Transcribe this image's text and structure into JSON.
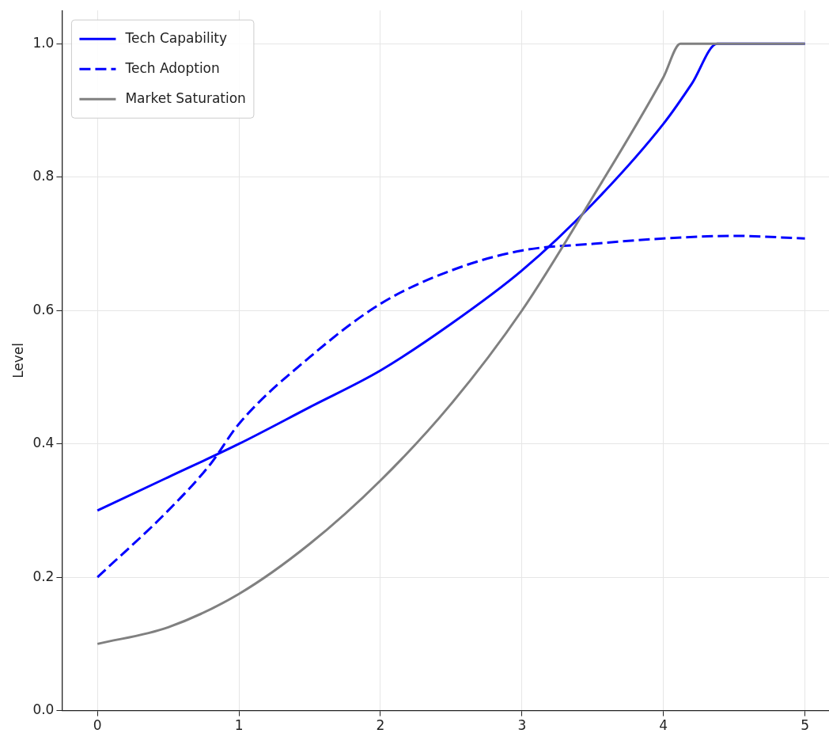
{
  "chart_data": {
    "type": "line",
    "ylabel": "Level",
    "xlim": [
      -0.25,
      5.17
    ],
    "xticks": [
      0,
      1,
      2,
      3,
      4,
      5
    ],
    "ylim": [
      0,
      1.05
    ],
    "yticks": [
      {
        "value": 0,
        "label": "0.0"
      },
      {
        "value": 0.2,
        "label": "0.2"
      },
      {
        "value": 0.4,
        "label": "0.4"
      },
      {
        "value": 0.6,
        "label": "0.6"
      },
      {
        "value": 0.8,
        "label": "0.8"
      },
      {
        "value": 1.0,
        "label": "1.0"
      }
    ],
    "grid": true,
    "legend": "top left",
    "marker": "none",
    "series": [
      {
        "name": "Tech Capability",
        "color": "#0000ff",
        "line_style": "solid",
        "x": [
          0,
          0.5,
          1,
          1.5,
          2,
          2.5,
          3,
          3.5,
          4,
          4.2,
          4.38,
          5
        ],
        "values": [
          0.3,
          0.35,
          0.4,
          0.455,
          0.51,
          0.58,
          0.66,
          0.76,
          0.88,
          0.94,
          1.0,
          1.0
        ]
      },
      {
        "name": "Tech Adoption",
        "color": "#0000ff",
        "line_style": "dashed",
        "x": [
          0,
          0.5,
          0.8,
          1,
          1.5,
          2,
          2.5,
          3,
          3.5,
          4,
          4.5,
          5
        ],
        "values": [
          0.2,
          0.3,
          0.37,
          0.43,
          0.53,
          0.61,
          0.66,
          0.69,
          0.7,
          0.708,
          0.712,
          0.708
        ]
      },
      {
        "name": "Market Saturation",
        "color": "#808080",
        "line_style": "solid",
        "x": [
          0,
          0.5,
          1,
          1.5,
          2,
          2.5,
          3,
          3.5,
          4,
          4.12,
          5
        ],
        "values": [
          0.1,
          0.125,
          0.175,
          0.25,
          0.345,
          0.46,
          0.6,
          0.77,
          0.95,
          1.0,
          1.0
        ]
      }
    ]
  }
}
